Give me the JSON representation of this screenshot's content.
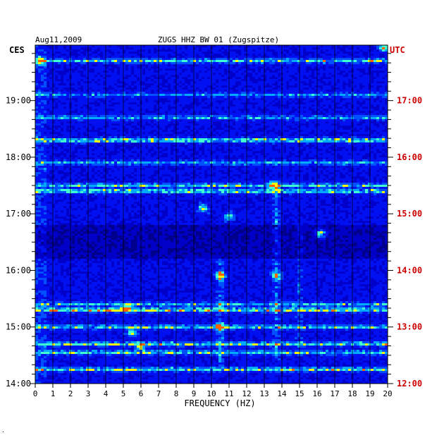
{
  "chart_data": {
    "type": "heatmap",
    "date_label": "Aug11,2009",
    "title": "ZUGS HHZ BW 01 (Zugspitze)",
    "xlabel": "FREQUENCY (HZ)",
    "left_axis_label": "CES",
    "right_axis_label": "UTC",
    "xlim": [
      0,
      20
    ],
    "x_ticks": [
      "0",
      "1",
      "2",
      "3",
      "4",
      "5",
      "6",
      "7",
      "8",
      "9",
      "10",
      "11",
      "12",
      "13",
      "14",
      "15",
      "16",
      "17",
      "18",
      "19",
      "20"
    ],
    "left_ticks": [
      {
        "label": "19:00",
        "hour": 19
      },
      {
        "label": "18:00",
        "hour": 18
      },
      {
        "label": "17:00",
        "hour": 17
      },
      {
        "label": "16:00",
        "hour": 16
      },
      {
        "label": "15:00",
        "hour": 15
      },
      {
        "label": "14:00",
        "hour": 14
      }
    ],
    "right_ticks": [
      {
        "label": "17:00",
        "hour": 17
      },
      {
        "label": "16:00",
        "hour": 16
      },
      {
        "label": "15:00",
        "hour": 15
      },
      {
        "label": "14:00",
        "hour": 14
      },
      {
        "label": "13:00",
        "hour": 13
      },
      {
        "label": "12:00",
        "hour": 12
      }
    ],
    "time_range_ces": [
      14.0,
      19.98
    ],
    "grid": true,
    "colors": {
      "background": "#0000c8",
      "axis": "#000000",
      "utc_text": "#cc0000",
      "grid": "#000000"
    },
    "colormap": [
      "#00008c",
      "#0000c8",
      "#0010f0",
      "#0050ff",
      "#00a8ff",
      "#40ffd0",
      "#ffff00",
      "#ff6000"
    ],
    "bright_rows": [
      {
        "t": 19.7,
        "i": 0.45
      },
      {
        "t": 19.1,
        "i": 0.3
      },
      {
        "t": 18.7,
        "i": 0.35
      },
      {
        "t": 18.3,
        "i": 0.55
      },
      {
        "t": 17.9,
        "i": 0.35
      },
      {
        "t": 17.5,
        "i": 0.45
      },
      {
        "t": 17.4,
        "i": 0.5
      },
      {
        "t": 15.4,
        "i": 0.4
      },
      {
        "t": 15.3,
        "i": 0.6
      },
      {
        "t": 15.0,
        "i": 0.45
      },
      {
        "t": 14.7,
        "i": 0.5
      },
      {
        "t": 14.55,
        "i": 0.45
      },
      {
        "t": 14.25,
        "i": 0.5
      }
    ],
    "hot_spots": [
      {
        "f": 10.5,
        "t": 15.9,
        "i": 0.85
      },
      {
        "f": 10.5,
        "t": 15.0,
        "i": 0.85
      },
      {
        "f": 13.7,
        "t": 15.9,
        "i": 0.7
      },
      {
        "f": 13.5,
        "t": 17.5,
        "i": 0.7
      },
      {
        "f": 9.5,
        "t": 17.1,
        "i": 0.7
      },
      {
        "f": 16.2,
        "t": 16.65,
        "i": 0.75
      },
      {
        "f": 5.2,
        "t": 15.33,
        "i": 0.8
      },
      {
        "f": 19.8,
        "t": 19.95,
        "i": 0.9
      },
      {
        "f": 0.3,
        "t": 19.7,
        "i": 0.6
      },
      {
        "f": 11.0,
        "t": 16.95,
        "i": 0.65
      },
      {
        "f": 5.5,
        "t": 14.9,
        "i": 0.65
      },
      {
        "f": 6.0,
        "t": 14.65,
        "i": 0.6
      }
    ],
    "hot_columns": [
      {
        "f": 10.5,
        "t0": 14.3,
        "t1": 16.2,
        "i": 0.35
      },
      {
        "f": 13.7,
        "t0": 14.4,
        "t1": 17.6,
        "i": 0.3
      },
      {
        "f": 15.0,
        "t0": 14.5,
        "t1": 16.8,
        "i": 0.2
      }
    ]
  }
}
